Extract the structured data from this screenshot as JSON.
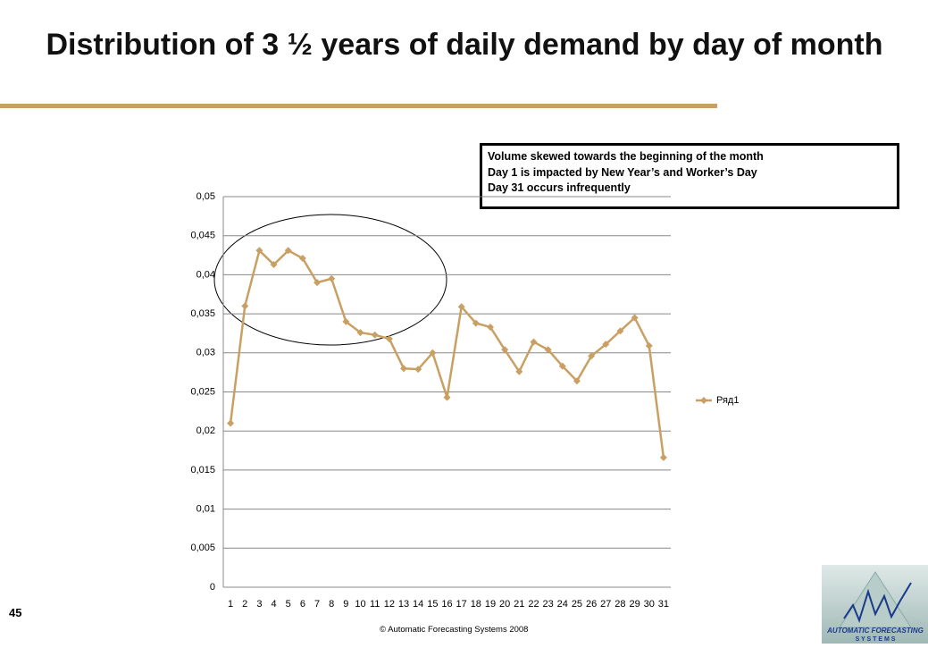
{
  "title": "Distribution of 3 ½ years of daily demand by day of month",
  "annotation": [
    "Volume skewed  towards the beginning of the month",
    "Day 1 is impacted by New Year’s and Worker’s Day",
    "Day 31 occurs infrequently"
  ],
  "page_number": "45",
  "footer": "© Automatic Forecasting Systems 2008",
  "logo": {
    "line1": "AUTOMATIC FORECASTING",
    "line2": "S Y S T E M S"
  },
  "chart_data": {
    "type": "line",
    "categories": [
      "1",
      "2",
      "3",
      "4",
      "5",
      "6",
      "7",
      "8",
      "9",
      "10",
      "11",
      "12",
      "13",
      "14",
      "15",
      "16",
      "17",
      "18",
      "19",
      "20",
      "21",
      "22",
      "23",
      "24",
      "25",
      "26",
      "27",
      "28",
      "29",
      "30",
      "31"
    ],
    "series": [
      {
        "name": "Ряд1",
        "color": "#c9a063",
        "values": [
          0.021,
          0.036,
          0.0431,
          0.0413,
          0.0431,
          0.0421,
          0.039,
          0.0395,
          0.034,
          0.0326,
          0.0323,
          0.0318,
          0.028,
          0.0279,
          0.03,
          0.0243,
          0.0359,
          0.0338,
          0.0333,
          0.0304,
          0.0276,
          0.0314,
          0.0304,
          0.0283,
          0.0264,
          0.0296,
          0.0311,
          0.0328,
          0.0345,
          0.0309,
          0.0166
        ]
      }
    ],
    "ylim": [
      0,
      0.05
    ],
    "yticks": [
      0,
      {
        "value": 0.005,
        "label": "0,005"
      },
      {
        "value": 0.01,
        "label": "0,01"
      },
      {
        "value": 0.015,
        "label": "0,015"
      },
      {
        "value": 0.02,
        "label": "0,02"
      },
      {
        "value": 0.025,
        "label": "0,025"
      },
      {
        "value": 0.03,
        "label": "0,03"
      },
      {
        "value": 0.035,
        "label": "0,035"
      },
      {
        "value": 0.04,
        "label": "0,04"
      },
      {
        "value": 0.045,
        "label": "0,045"
      },
      {
        "value": 0.05,
        "label": "0,05"
      }
    ],
    "grid": true,
    "legend": "right"
  }
}
